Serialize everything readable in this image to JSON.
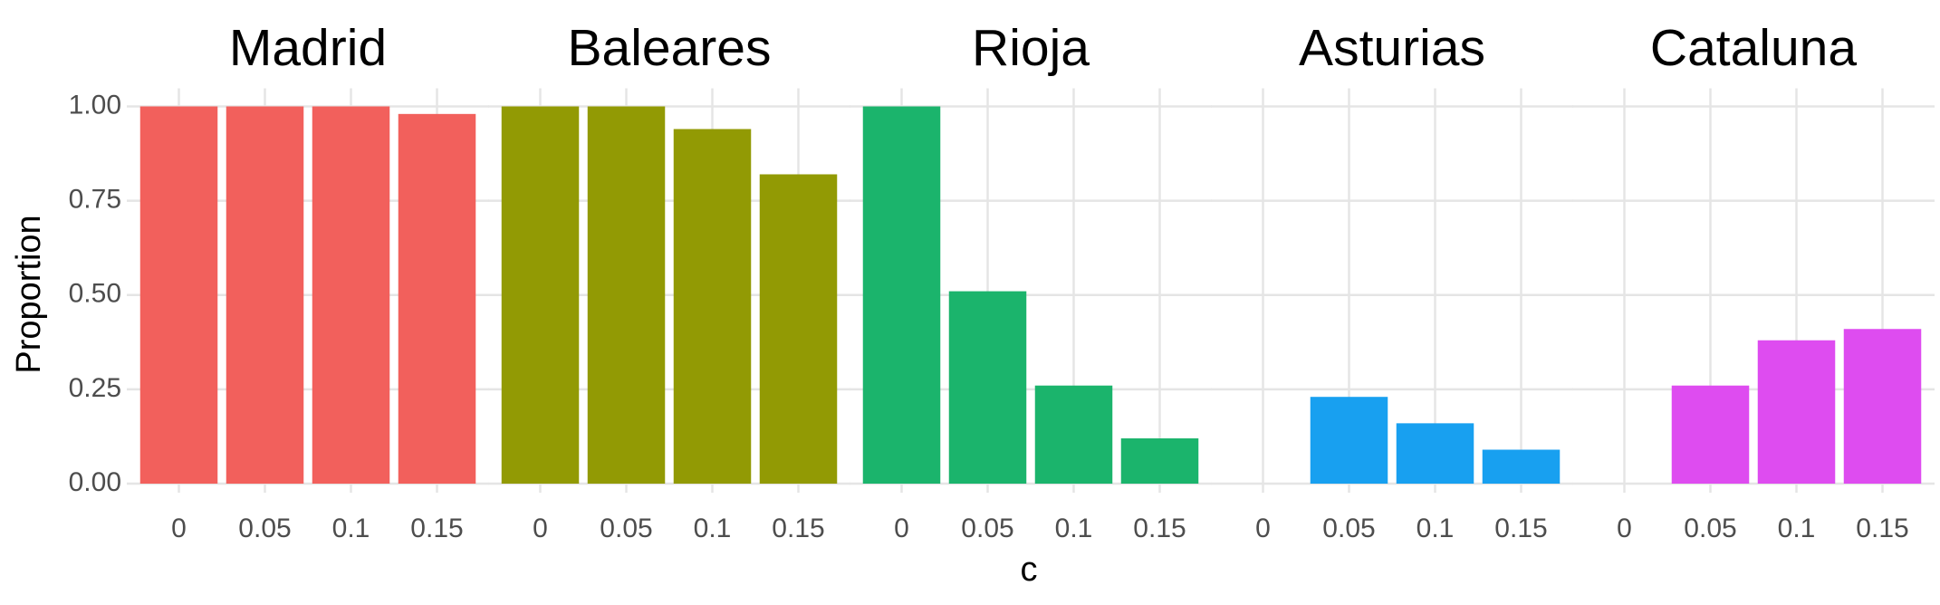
{
  "chart_data": {
    "type": "bar",
    "categories": [
      "0",
      "0.05",
      "0.1",
      "0.15"
    ],
    "facets": [
      {
        "title": "Madrid",
        "color": "#F2605C",
        "values": [
          1,
          1,
          1,
          0.98
        ]
      },
      {
        "title": "Baleares",
        "color": "#929A04",
        "values": [
          1,
          1,
          0.94,
          0.82
        ]
      },
      {
        "title": "Rioja",
        "color": "#1BB46C",
        "values": [
          1,
          0.51,
          0.26,
          0.12
        ]
      },
      {
        "title": "Asturias",
        "color": "#18A0F0",
        "values": [
          0,
          0.23,
          0.16,
          0.09
        ]
      },
      {
        "title": "Cataluna",
        "color": "#DE4CF0",
        "values": [
          0,
          0.26,
          0.38,
          0.41
        ]
      }
    ],
    "xlabel": "c",
    "ylabel": "Proportion",
    "ylim": [
      0,
      1
    ],
    "yticks": [
      {
        "value": 0,
        "label": "0.00"
      },
      0.25,
      {
        "value": 0.5,
        "label": "0.50"
      },
      0.75,
      {
        "value": 1,
        "label": "1.00"
      }
    ],
    "grid": true
  }
}
